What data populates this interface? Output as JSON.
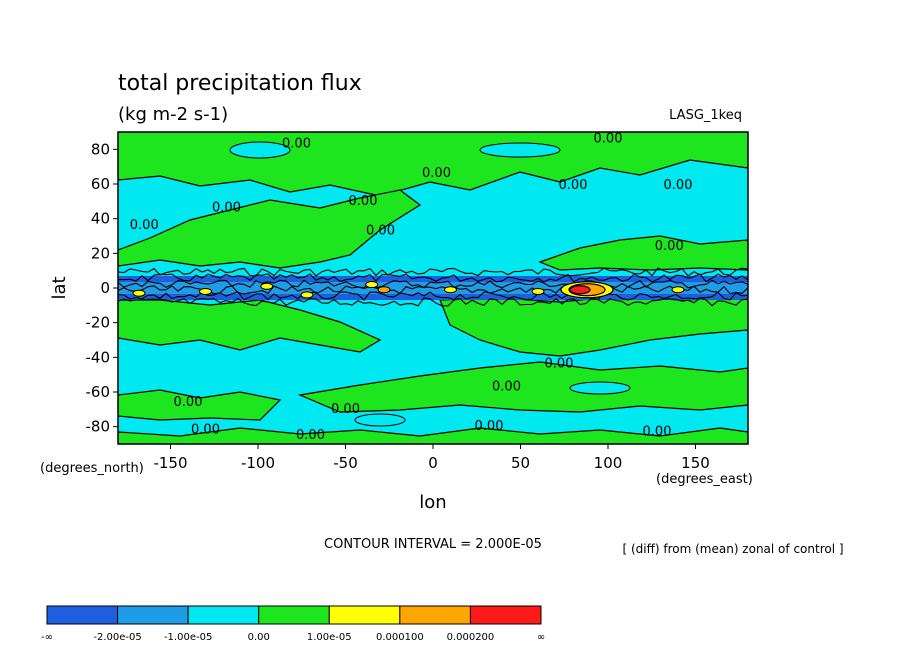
{
  "chart_data": {
    "type": "heatmap",
    "title": "total precipitation flux",
    "units": "(kg m-2 s-1)",
    "run_label": "LASG_1keq",
    "xlabel": "lon",
    "ylabel": "lat",
    "x_units": "(degrees_east)",
    "y_units": "(degrees_north)",
    "xlim": [
      -180,
      180
    ],
    "ylim": [
      -90,
      90
    ],
    "x_ticks": [
      -150,
      -100,
      -50,
      0,
      50,
      100,
      150
    ],
    "y_ticks": [
      80,
      60,
      40,
      20,
      0,
      -20,
      -40,
      -60,
      -80
    ],
    "contour_interval_text": "CONTOUR INTERVAL = 2.000E-05",
    "note": "[ (diff) from (mean) zonal of control ]",
    "contour_labels": [
      {
        "lon": -78,
        "lat": 81,
        "text": "0.00"
      },
      {
        "lon": 100,
        "lat": 84,
        "text": "0.00"
      },
      {
        "lon": 2,
        "lat": 64,
        "text": "0.00"
      },
      {
        "lon": 80,
        "lat": 57,
        "text": "0.00"
      },
      {
        "lon": 140,
        "lat": 57,
        "text": "0.00"
      },
      {
        "lon": -118,
        "lat": 44,
        "text": "0.00"
      },
      {
        "lon": -40,
        "lat": 48,
        "text": "0.00"
      },
      {
        "lon": -165,
        "lat": 34,
        "text": "0.00"
      },
      {
        "lon": -30,
        "lat": 31,
        "text": "0.00"
      },
      {
        "lon": 135,
        "lat": 22,
        "text": "0.00"
      },
      {
        "lon": 72,
        "lat": -46,
        "text": "0.00"
      },
      {
        "lon": -140,
        "lat": -68,
        "text": "0.00"
      },
      {
        "lon": -50,
        "lat": -72,
        "text": "0.00"
      },
      {
        "lon": 42,
        "lat": -59,
        "text": "0.00"
      },
      {
        "lon": -130,
        "lat": -84,
        "text": "0.00"
      },
      {
        "lon": -70,
        "lat": -87,
        "text": "0.00"
      },
      {
        "lon": 32,
        "lat": -82,
        "text": "0.00"
      },
      {
        "lon": 128,
        "lat": -85,
        "text": "0.00"
      }
    ],
    "colorbar": {
      "colors": [
        "#1e5fe0",
        "#1e9ce6",
        "#00e8f0",
        "#1ee61e",
        "#ffff00",
        "#ffa500",
        "#ff1a1a"
      ],
      "labels": [
        "-∞",
        "-2.00e-05",
        "-1.00e-05",
        "0.00",
        "1.00e-05",
        "0.000100",
        "0.000200",
        "∞"
      ]
    }
  }
}
